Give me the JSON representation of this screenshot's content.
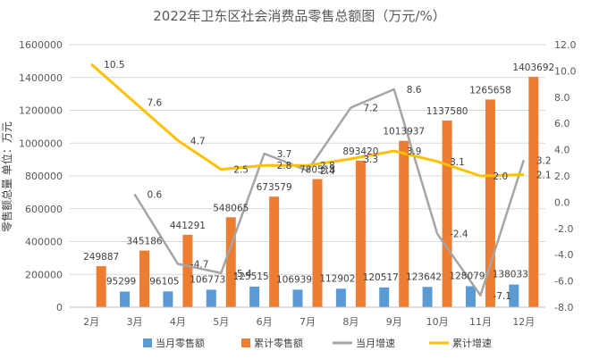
{
  "chart_data": {
    "type": "bar+line",
    "title": "2022年卫东区社会消费品零售总额图（万元/%）",
    "ylabel": "零售额总量  单位：万元",
    "categories": [
      "2月",
      "3月",
      "4月",
      "5月",
      "6月",
      "7月",
      "8月",
      "9月",
      "10月",
      "11月",
      "12月"
    ],
    "series": [
      {
        "name": "当月零售额",
        "type": "bar",
        "axis": "left",
        "color": "#5B9BD5",
        "values": [
          null,
          95299,
          96105,
          106773,
          125515,
          106939,
          112902,
          120517,
          123642,
          128079,
          138033
        ],
        "labels": [
          "",
          "95299",
          "96105",
          "106773",
          "125515",
          "106939",
          "112902",
          "120517",
          "123642",
          "128079",
          "138033"
        ]
      },
      {
        "name": "累计零售额",
        "type": "bar",
        "axis": "left",
        "color": "#ED7D31",
        "values": [
          249887,
          345186,
          441291,
          548065,
          673579,
          780518,
          893420,
          1013937,
          1137580,
          1265658,
          1403692
        ],
        "labels": [
          "249887",
          "345186",
          "441291",
          "548065",
          "673579",
          "780518",
          "893420",
          "1013937",
          "1137580",
          "1265658",
          "1403692"
        ]
      },
      {
        "name": "当月增速",
        "type": "line",
        "axis": "right",
        "color": "#A5A5A5",
        "values": [
          null,
          0.6,
          -4.7,
          -5.4,
          3.7,
          2.4,
          7.2,
          8.6,
          -2.4,
          -7.1,
          3.2
        ],
        "labels": [
          "",
          "0.6",
          "-4.7",
          "-5.4",
          "3.7",
          "2.4",
          "7.2",
          "8.6",
          "-2.4",
          "-7.1",
          "3.2"
        ]
      },
      {
        "name": "累计增速",
        "type": "line",
        "axis": "right",
        "color": "#FFC000",
        "values": [
          10.5,
          7.6,
          4.7,
          2.5,
          2.8,
          2.8,
          3.3,
          3.9,
          3.1,
          2.0,
          2.1
        ],
        "labels": [
          "10.5",
          "7.6",
          "4.7",
          "2.5",
          "2.8",
          "2.8",
          "3.3",
          "3.9",
          "3.1",
          "2.0",
          "2.1"
        ]
      }
    ],
    "yLeft": {
      "min": 0,
      "max": 1600000,
      "ticks": [
        "0",
        "200000",
        "400000",
        "600000",
        "800000",
        "1000000",
        "1200000",
        "1400000",
        "1600000"
      ]
    },
    "yRight": {
      "min": -8.0,
      "max": 12.0,
      "ticks": [
        "-8.0",
        "-6.0",
        "-4.0",
        "-2.0",
        "0.0",
        "2.0",
        "4.0",
        "6.0",
        "8.0",
        "10.0",
        "12.0"
      ]
    },
    "grid": true,
    "legend": "bottom"
  }
}
